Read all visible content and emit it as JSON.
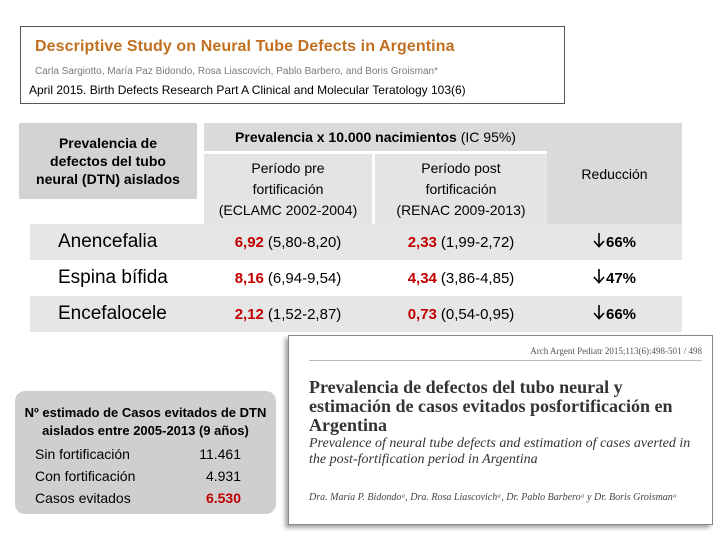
{
  "citation": {
    "title": "Descriptive Study on Neural Tube Defects in Argentina",
    "authors": "Carla Sargiotto, María Paz Bidondo, Rosa Liascovich, Pablo Barbero, and Boris Groisman*",
    "reference": "April 2015. Birth Defects Research Part A Clinical and Molecular Teratology 103(6)"
  },
  "prevalence_box": {
    "line1": "Prevalencia de",
    "line2": "defectos del tubo",
    "line3": "neural (DTN) aislados"
  },
  "table": {
    "header_main_bold": "Prevalencia x 10.000 nacimientos",
    "header_main_rest": "(IC 95%)",
    "header_reduction": "Reducción",
    "pre": {
      "line1": "Período pre",
      "line2": "fortificación",
      "line3": "(ECLAMC 2002-2004)"
    },
    "post": {
      "line1": "Período post",
      "line2": "fortificación",
      "line3": "(RENAC 2009-2013)"
    },
    "rows": [
      {
        "name": "Anencefalia",
        "pre_value": "6,92",
        "pre_ci": "(5,80-8,20)",
        "post_value": "2,33",
        "post_ci": "(1,99-2,72)",
        "reduction": "66%"
      },
      {
        "name": "Espina bífida",
        "pre_value": "8,16",
        "pre_ci": "(6,94-9,54)",
        "post_value": "4,34",
        "post_ci": "(3,86-4,85)",
        "reduction": "47%"
      },
      {
        "name": "Encefalocele",
        "pre_value": "2,12",
        "pre_ci": "(1,52-2,87)",
        "post_value": "0,73",
        "post_ci": "(0,54-0,95)",
        "reduction": "66%"
      }
    ],
    "arrow_icon": "down-arrow-icon",
    "highlight_color": "#c00000"
  },
  "estimate": {
    "title_line1": "Nº estimado de Casos evitados de DTN",
    "title_line2": "aislados entre 2005-2013 (9 años)",
    "items": [
      {
        "label": "Sin fortificación",
        "value": "11.461"
      },
      {
        "label": "Con fortificación",
        "value": "4.931"
      },
      {
        "label": "Casos evitados",
        "value": "6.530"
      }
    ]
  },
  "article": {
    "journal": "Arch Argent Pediatr 2015;113(6):498-501 / 498",
    "title_es": "Prevalencia de defectos del tubo neural y estimación de casos evitados posfortificación en Argentina",
    "title_en": "Prevalence of neural tube defects and estimation of cases averted in the post-fortification period in Argentina",
    "authors": "Dra. María P. Bidondoᵃ, Dra. Rosa Liascovichᵃ, Dr. Pablo Barberoᵃ y Dr. Boris Groismanᵃ"
  }
}
